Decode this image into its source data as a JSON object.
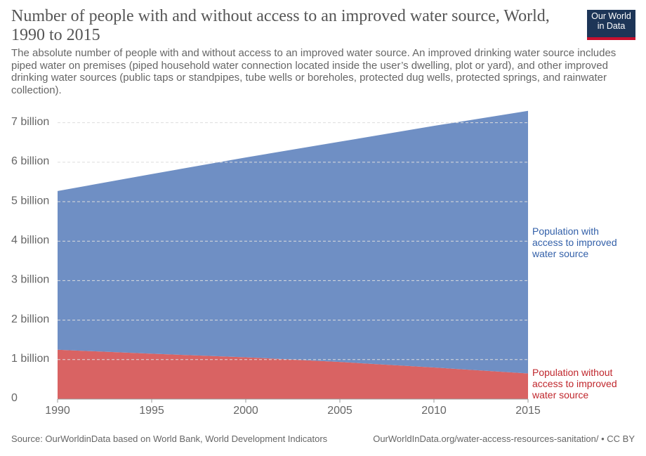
{
  "title": "Number of people with and without access to an improved water source, World, 1990 to 2015",
  "logo": "Our World in Data",
  "subtitle": "The absolute number of people with and without access to an improved water source. An improved drinking water source includes piped water on premises (piped household water connection located inside the user’s dwelling, plot or yard), and other improved drinking water sources (public taps or standpipes, tube wells or boreholes, protected dug wells, protected springs, and rainwater collection).",
  "source": "Source: OurWorldinData based on World Bank, World Development Indicators",
  "url": "OurWorldInData.org/water-access-resources-sanitation/ • CC BY",
  "chart_data": {
    "type": "stacked-area",
    "x": [
      1990,
      1995,
      2000,
      2005,
      2010,
      2015
    ],
    "series": [
      {
        "name": "Population without access to improved water source",
        "color": "#d96363",
        "label_color": "#c0272d",
        "values": [
          1250000000,
          1150000000,
          1060000000,
          940000000,
          800000000,
          650000000
        ]
      },
      {
        "name": "Population with access to improved water source",
        "color": "#6f8fc4",
        "label_color": "#3360a9",
        "values": [
          4020000000,
          4550000000,
          5060000000,
          5580000000,
          6120000000,
          6650000000
        ]
      }
    ],
    "xlim": [
      1990,
      2015
    ],
    "xticks": [
      1990,
      1995,
      2000,
      2005,
      2010,
      2015
    ],
    "ylim": [
      0,
      7350000000
    ],
    "yticks": [
      0,
      {
        "value": 1000000000,
        "label": "1 billion"
      },
      {
        "value": 2000000000,
        "label": "2 billion"
      },
      {
        "value": 3000000000,
        "label": "3 billion"
      },
      {
        "value": 4000000000,
        "label": "4 billion"
      },
      {
        "value": 5000000000,
        "label": "5 billion"
      },
      {
        "value": 6000000000,
        "label": "6 billion"
      },
      {
        "value": 7000000000,
        "label": "7 billion"
      }
    ],
    "grid": true
  }
}
